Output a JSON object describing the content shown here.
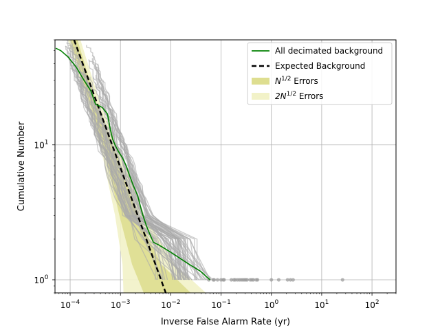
{
  "chart_data": {
    "type": "line",
    "title": "",
    "xlabel": "Inverse False Alarm Rate (yr)",
    "ylabel": "Cumulative Number",
    "xscale": "log",
    "yscale": "log",
    "xlim": [
      5e-05,
      300
    ],
    "ylim": [
      0.8,
      60
    ],
    "grid": true,
    "legend_position": "top-right",
    "x_tick_labels": [
      {
        "value": 0.0001,
        "base": "10",
        "exp": "−4"
      },
      {
        "value": 0.001,
        "base": "10",
        "exp": "−3"
      },
      {
        "value": 0.01,
        "base": "10",
        "exp": "−2"
      },
      {
        "value": 0.1,
        "base": "10",
        "exp": "−1"
      },
      {
        "value": 1,
        "base": "10",
        "exp": "0"
      },
      {
        "value": 10,
        "base": "10",
        "exp": "1"
      },
      {
        "value": 100,
        "base": "10",
        "exp": "2"
      }
    ],
    "y_tick_labels": [
      {
        "value": 1,
        "base": "10",
        "exp": "0"
      },
      {
        "value": 10,
        "base": "10",
        "exp": "1"
      }
    ],
    "legend": [
      {
        "kind": "line",
        "color": "#008000",
        "dashed": false,
        "text": "All decimated background",
        "sup": "",
        "prefix": "",
        "suffix": ""
      },
      {
        "kind": "line",
        "color": "#000000",
        "dashed": true,
        "text": "Expected Background",
        "sup": "",
        "prefix": "",
        "suffix": ""
      },
      {
        "kind": "patch",
        "color": "#dede90",
        "dashed": false,
        "text": "",
        "prefix": "N",
        "sup": "1/2",
        "suffix": " Errors"
      },
      {
        "kind": "patch",
        "color": "#f2f2c8",
        "dashed": false,
        "text": "",
        "prefix": "2N",
        "sup": "1/2",
        "suffix": " Errors"
      }
    ],
    "colors": {
      "all_decimated": "#008000",
      "expected": "#000000",
      "band_1sigma": "#dede90",
      "band_2sigma": "#f2f2c8",
      "trials": "#aaaaaa",
      "grid": "#b0b0b0"
    },
    "expected_background": {
      "x": [
        0.00012,
        0.00794
      ],
      "y": [
        60,
        0.8
      ]
    },
    "band_2sigma": {
      "x_left": [
        9e-05,
        0.00022,
        0.00045,
        0.00078,
        0.0011,
        0.00115
      ],
      "x_right": [
        0.00016,
        0.0004,
        0.0011,
        0.003,
        0.012,
        0.05
      ],
      "y": [
        60,
        20,
        8,
        3,
        1.3,
        0.8
      ]
    },
    "band_1sigma": {
      "x_left": [
        0.0001,
        0.00025,
        0.00052,
        0.00095,
        0.0017,
        0.0029
      ],
      "x_right": [
        0.00014,
        0.00034,
        0.0009,
        0.0022,
        0.0065,
        0.025
      ],
      "y": [
        60,
        20,
        8,
        3,
        1.3,
        0.8
      ]
    },
    "series": [
      {
        "name": "All decimated background",
        "x": [
          5.2e-05,
          6.5e-05,
          9e-05,
          0.00013,
          0.00019,
          0.00026,
          0.00032,
          0.00043,
          0.00055,
          0.00063,
          0.0007,
          0.00078,
          0.0009,
          0.0011,
          0.0013,
          0.0015,
          0.0018,
          0.0022,
          0.0025,
          0.0028,
          0.0033,
          0.0038,
          0.0045,
          0.006,
          0.01,
          0.02,
          0.04,
          0.06
        ],
        "y": [
          52,
          50,
          45,
          38,
          30,
          25,
          20,
          19,
          17,
          13,
          11,
          10,
          9,
          8,
          7,
          6,
          5,
          4.2,
          3.5,
          3,
          2.5,
          2.2,
          1.9,
          1.8,
          1.6,
          1.35,
          1.15,
          1.0
        ]
      }
    ],
    "trial_background_count": 60,
    "trial_points_y": 1,
    "trial_points_x": [
      0.057,
      0.07,
      0.073,
      0.085,
      0.1,
      0.11,
      0.115,
      0.16,
      0.18,
      0.19,
      0.21,
      0.23,
      0.25,
      0.27,
      0.29,
      0.31,
      0.33,
      0.38,
      0.41,
      0.44,
      0.5,
      0.53,
      1.0,
      1.4,
      2.1,
      2.4,
      2.7,
      26
    ]
  }
}
